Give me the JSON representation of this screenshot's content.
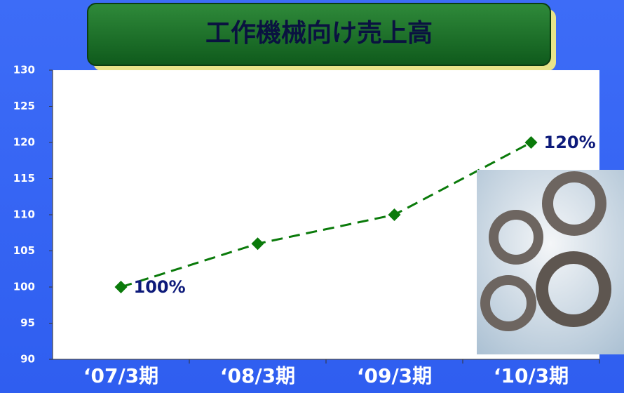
{
  "chart_data": {
    "type": "line",
    "title": "工作機械向け売上高",
    "categories": [
      "‘07/3期",
      "‘08/3期",
      "‘09/3期",
      "‘10/3期"
    ],
    "series": [
      {
        "name": "工作機械向け売上高",
        "color": "#0a7a0a",
        "values": [
          100,
          106,
          110,
          120
        ],
        "value_labels": [
          "100%",
          null,
          null,
          "120%"
        ]
      }
    ],
    "ylim": [
      90,
      130
    ],
    "yticks": [
      90,
      95,
      100,
      105,
      110,
      115,
      120,
      125,
      130
    ],
    "grid": false
  }
}
